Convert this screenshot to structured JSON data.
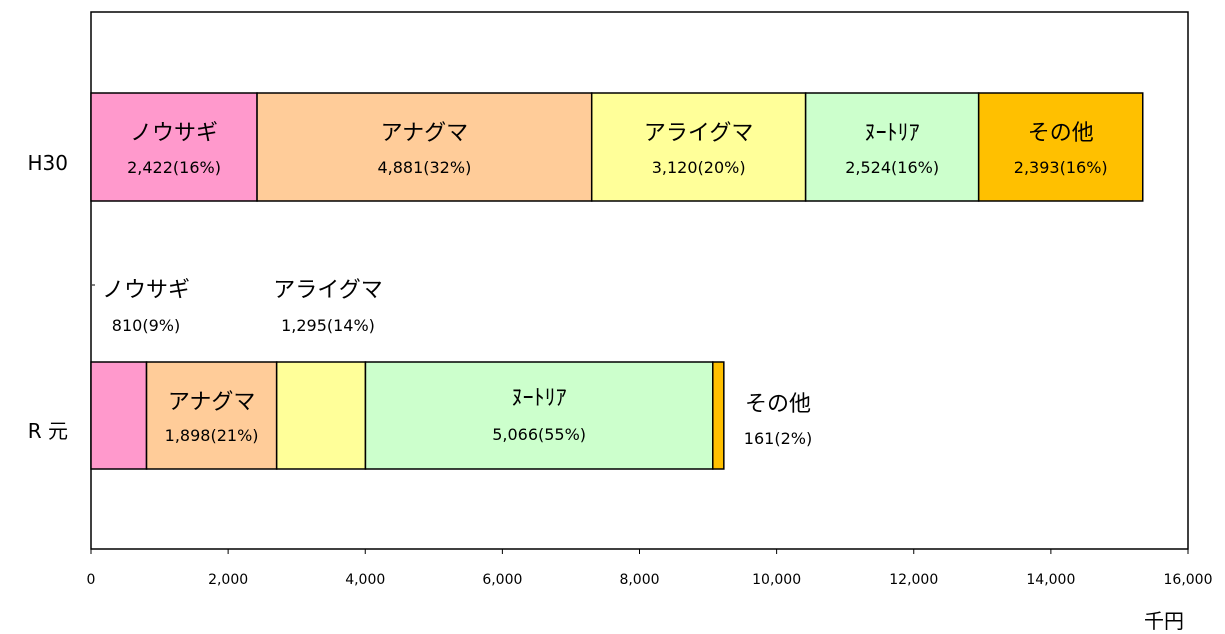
{
  "chart_data": {
    "type": "bar",
    "orientation": "horizontal",
    "stacked": true,
    "unit": "千円",
    "xlim": [
      0,
      16000
    ],
    "x_ticks": [
      0,
      2000,
      4000,
      6000,
      8000,
      10000,
      12000,
      14000,
      16000
    ],
    "x_tick_labels": [
      "0",
      "2,000",
      "4,000",
      "6,000",
      "8,000",
      "10,000",
      "12,000",
      "14,000",
      "16,000"
    ],
    "grid": false,
    "legend": "none",
    "categories": [
      "H30",
      "R 元"
    ],
    "series": [
      {
        "name": "ノウサギ",
        "color": "#ff99cc",
        "values": [
          2422,
          810
        ],
        "labels": [
          "2,422(16%)",
          "810(9%)"
        ]
      },
      {
        "name": "アナグマ",
        "color": "#ffcc99",
        "values": [
          4881,
          1898
        ],
        "labels": [
          "4,881(32%)",
          "1,898(21%)"
        ]
      },
      {
        "name": "アライグマ",
        "color": "#ffff99",
        "values": [
          3120,
          1295
        ],
        "labels": [
          "3,120(20%)",
          "1,295(14%)"
        ]
      },
      {
        "name": "ﾇｰﾄﾘｱ",
        "color": "#ccffcc",
        "values": [
          2524,
          5066
        ],
        "labels": [
          "2,524(16%)",
          "5,066(55%)"
        ]
      },
      {
        "name": "その他",
        "color": "#ffc000",
        "values": [
          2393,
          161
        ],
        "labels": [
          "2,393(16%)",
          "161(2%)"
        ]
      }
    ]
  }
}
